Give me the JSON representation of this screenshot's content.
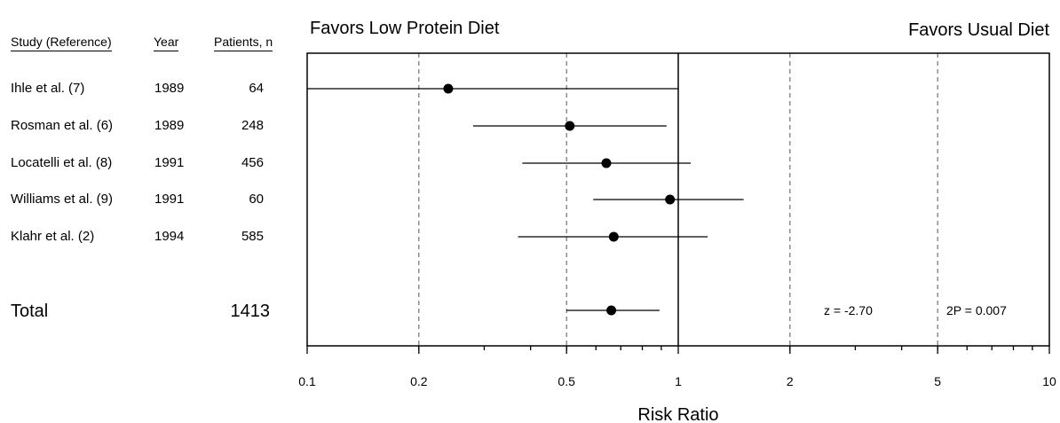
{
  "chart_data": {
    "type": "forest",
    "favors_left": "Favors Low Protein Diet",
    "favors_right": "Favors Usual Diet",
    "columns": {
      "study": "Study (Reference)",
      "year": "Year",
      "patients": "Patients, n"
    },
    "studies": [
      {
        "study": "Ihle et al. (7)",
        "year": "1989",
        "patients": "64",
        "rr": 0.24,
        "ci_low": 0.1,
        "ci_high": 1.0
      },
      {
        "study": "Rosman et al. (6)",
        "year": "1989",
        "patients": "248",
        "rr": 0.51,
        "ci_low": 0.28,
        "ci_high": 0.93
      },
      {
        "study": "Locatelli et al. (8)",
        "year": "1991",
        "patients": "456",
        "rr": 0.64,
        "ci_low": 0.38,
        "ci_high": 1.08
      },
      {
        "study": "Williams et al. (9)",
        "year": "1991",
        "patients": "60",
        "rr": 0.95,
        "ci_low": 0.59,
        "ci_high": 1.5
      },
      {
        "study": "Klahr et al. (2)",
        "year": "1994",
        "patients": "585",
        "rr": 0.67,
        "ci_low": 0.37,
        "ci_high": 1.2
      }
    ],
    "total": {
      "label": "Total",
      "patients": "1413",
      "rr": 0.66,
      "ci_low": 0.5,
      "ci_high": 0.89
    },
    "z_label": "z = -2.70",
    "p_label": "2P = 0.007",
    "x_scale": "log",
    "xlim": [
      0.1,
      10
    ],
    "x_ticks": [
      0.1,
      0.2,
      0.5,
      1,
      2,
      5,
      10
    ],
    "x_tick_labels": [
      "0.1",
      "0.2",
      "0.5",
      "1",
      "2",
      "5",
      "10"
    ],
    "xlabel": "Risk Ratio",
    "reference_line": 1,
    "dashed_lines": [
      0.2,
      0.5,
      2,
      5
    ]
  }
}
